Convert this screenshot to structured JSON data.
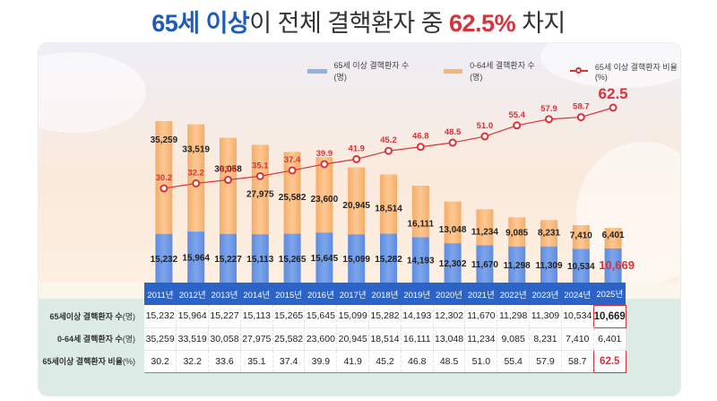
{
  "title": {
    "part1": "65세 이상",
    "part2": "이 전체 결핵환자 중 ",
    "part3": "62.5%",
    "part4": " 차지"
  },
  "legend": {
    "elderly": "65세 이상 결핵환자 수(명)",
    "young": "0-64세 결핵환자 수(명)",
    "ratio": "65세 이상 결핵환자 비율(%)"
  },
  "colors": {
    "elderly_bar": "#6f9ae6",
    "young_bar": "#f8b878",
    "ratio_line": "#d8323a",
    "header_blue": "#2c63c6",
    "title_blue": "#1f5bb8"
  },
  "table": {
    "row_labels": [
      {
        "label": "65세이상 결핵환자 수",
        "unit": "(명)"
      },
      {
        "label": "0-64세 결핵환자 수",
        "unit": "(명)"
      },
      {
        "label": "65세이상 결핵환자 비율",
        "unit": "(%)"
      }
    ]
  },
  "chart_data": {
    "type": "bar",
    "stacked": true,
    "title": "65세 이상이 전체 결핵환자 중 62.5% 차지",
    "categories": [
      "2011년",
      "2012년",
      "2013년",
      "2014년",
      "2015년",
      "2016년",
      "2017년",
      "2018년",
      "2019년",
      "2020년",
      "2021년",
      "2022년",
      "2023년",
      "2024년",
      "2025년"
    ],
    "series": [
      {
        "name": "65세 이상 결핵환자 수(명)",
        "type": "bar",
        "values": [
          15232,
          15964,
          15227,
          15113,
          15265,
          15645,
          15099,
          15282,
          14193,
          12302,
          11670,
          11298,
          11309,
          10534,
          10669
        ]
      },
      {
        "name": "0-64세 결핵환자 수(명)",
        "type": "bar",
        "values": [
          35259,
          33519,
          30058,
          27975,
          25582,
          23600,
          20945,
          18514,
          16111,
          13048,
          11234,
          9085,
          8231,
          7410,
          6401
        ]
      },
      {
        "name": "65세 이상 결핵환자 비율(%)",
        "type": "line",
        "values": [
          30.2,
          32.2,
          33.6,
          35.1,
          37.4,
          39.9,
          41.9,
          45.2,
          46.8,
          48.5,
          51.0,
          55.4,
          57.9,
          58.7,
          62.5
        ]
      }
    ],
    "highlight": {
      "category": "2025년",
      "elderly": "10,669",
      "ratio": "62.5"
    },
    "legend_position": "top-right",
    "xlabel": "",
    "ylabel": "",
    "grid": false
  }
}
